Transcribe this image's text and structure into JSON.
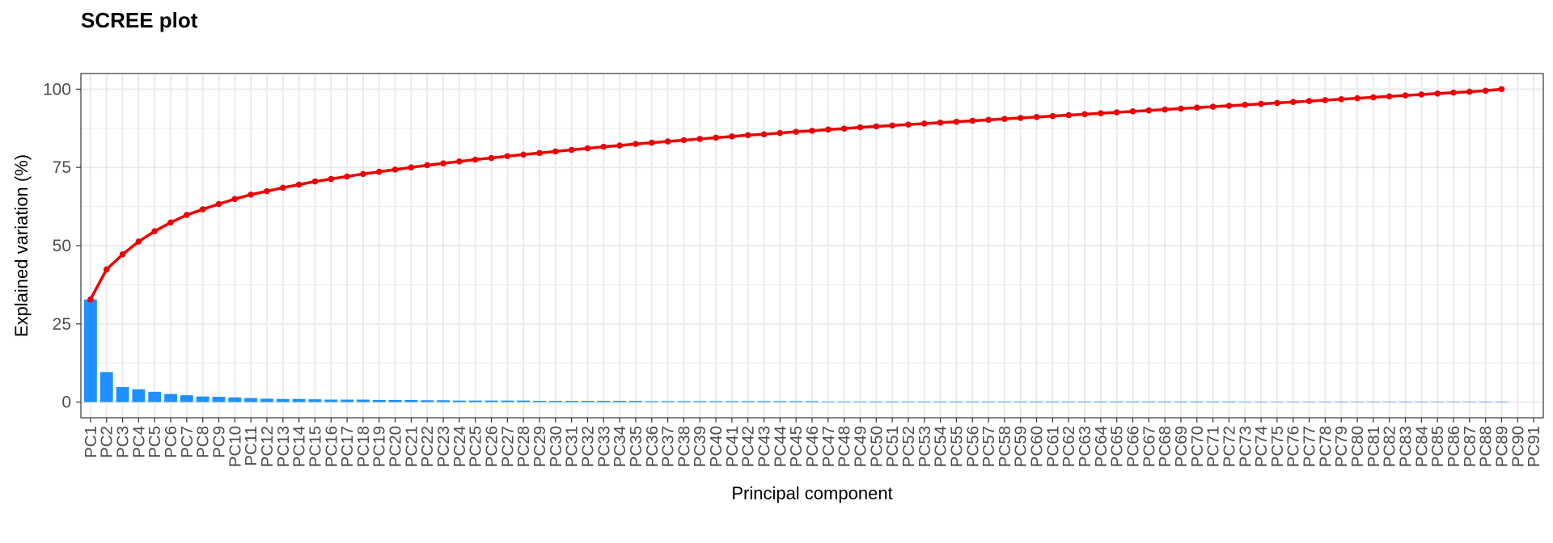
{
  "chart_data": {
    "type": "bar",
    "title": "SCREE plot",
    "xlabel": "Principal component",
    "ylabel": "Explained variation (%)",
    "ylim": [
      -5,
      105
    ],
    "yticks": [
      0,
      25,
      50,
      75,
      100
    ],
    "grid": true,
    "colors": {
      "bar": "#1E90FF",
      "line": "#EE0000",
      "grid": "#EBEBEB",
      "panel_border": "#333333"
    },
    "categories": [
      "PC1",
      "PC2",
      "PC3",
      "PC4",
      "PC5",
      "PC6",
      "PC7",
      "PC8",
      "PC9",
      "PC10",
      "PC11",
      "PC12",
      "PC13",
      "PC14",
      "PC15",
      "PC16",
      "PC17",
      "PC18",
      "PC19",
      "PC20",
      "PC21",
      "PC22",
      "PC23",
      "PC24",
      "PC25",
      "PC26",
      "PC27",
      "PC28",
      "PC29",
      "PC30",
      "PC31",
      "PC32",
      "PC33",
      "PC34",
      "PC35",
      "PC36",
      "PC37",
      "PC38",
      "PC39",
      "PC40",
      "PC41",
      "PC42",
      "PC43",
      "PC44",
      "PC45",
      "PC46",
      "PC47",
      "PC48",
      "PC49",
      "PC50",
      "PC51",
      "PC52",
      "PC53",
      "PC54",
      "PC55",
      "PC56",
      "PC57",
      "PC58",
      "PC59",
      "PC60",
      "PC61",
      "PC62",
      "PC63",
      "PC64",
      "PC65",
      "PC66",
      "PC67",
      "PC68",
      "PC69",
      "PC70",
      "PC71",
      "PC72",
      "PC73",
      "PC74",
      "PC75",
      "PC76",
      "PC77",
      "PC78",
      "PC79",
      "PC80",
      "PC81",
      "PC82",
      "PC83",
      "PC84",
      "PC85",
      "PC86",
      "PC87",
      "PC88",
      "PC89",
      "PC90",
      "PC91"
    ],
    "series": [
      {
        "type": "bar",
        "values": [
          32.8,
          9.6,
          4.8,
          4.1,
          3.3,
          2.6,
          2.2,
          1.8,
          1.7,
          1.5,
          1.3,
          1.1,
          1.0,
          1.0,
          0.9,
          0.8,
          0.8,
          0.8,
          0.7,
          0.7,
          0.7,
          0.6,
          0.6,
          0.5,
          0.5,
          0.5,
          0.5,
          0.5,
          0.4,
          0.4,
          0.4,
          0.4,
          0.4,
          0.4,
          0.4,
          0.3,
          0.3,
          0.3,
          0.3,
          0.3,
          0.3,
          0.3,
          0.3,
          0.3,
          0.3,
          0.3,
          0.2,
          0.2,
          0.2,
          0.2,
          0.2,
          0.2,
          0.2,
          0.2,
          0.2,
          0.2,
          0.2,
          0.2,
          0.2,
          0.2,
          0.2,
          0.2,
          0.2,
          0.2,
          0.2,
          0.2,
          0.2,
          0.2,
          0.2,
          0.2,
          0.2,
          0.2,
          0.1,
          0.1,
          0.1,
          0.1,
          0.1,
          0.1,
          0.1,
          0.1,
          0.1,
          0.1,
          0.1,
          0.1,
          0.1,
          0.1,
          0.1,
          0.1,
          0.1,
          0,
          0
        ]
      },
      {
        "type": "line",
        "values": [
          32.8,
          42.4,
          47.2,
          51.3,
          54.6,
          57.4,
          59.8,
          61.6,
          63.3,
          64.9,
          66.3,
          67.4,
          68.5,
          69.5,
          70.5,
          71.3,
          72.1,
          72.9,
          73.6,
          74.3,
          75.0,
          75.7,
          76.3,
          76.9,
          77.5,
          78.0,
          78.6,
          79.1,
          79.6,
          80.1,
          80.6,
          81.1,
          81.6,
          82.0,
          82.5,
          82.9,
          83.3,
          83.7,
          84.1,
          84.5,
          84.9,
          85.3,
          85.6,
          86.0,
          86.4,
          86.7,
          87.1,
          87.4,
          87.8,
          88.1,
          88.4,
          88.7,
          89.0,
          89.3,
          89.6,
          89.9,
          90.2,
          90.5,
          90.8,
          91.1,
          91.4,
          91.7,
          92.0,
          92.3,
          92.6,
          92.9,
          93.2,
          93.5,
          93.8,
          94.1,
          94.4,
          94.7,
          95.0,
          95.3,
          95.6,
          95.9,
          96.2,
          96.5,
          96.8,
          97.1,
          97.4,
          97.7,
          98.0,
          98.3,
          98.6,
          98.9,
          99.2,
          99.5,
          100,
          null,
          null
        ]
      }
    ]
  }
}
